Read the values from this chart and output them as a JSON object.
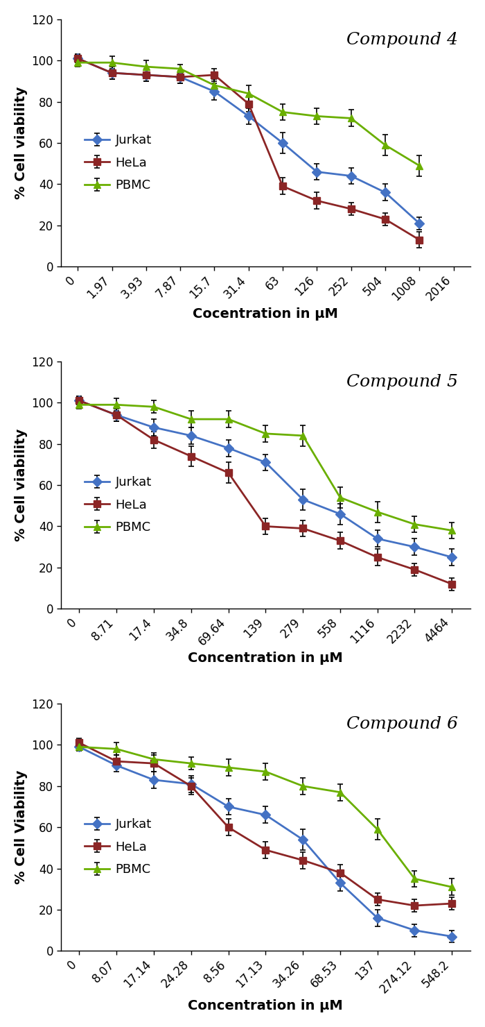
{
  "compound4": {
    "title": "Compound 4",
    "xlabel": "Cocentration in μM",
    "ylabel": "% Cell viability",
    "xtick_labels": [
      "0",
      "1.97",
      "3.93",
      "7.87",
      "15.7",
      "31.4",
      "63",
      "126",
      "252",
      "504",
      "1008",
      "2016"
    ],
    "jurkat_y": [
      101,
      94,
      93,
      92,
      85,
      73,
      60,
      46,
      44,
      36,
      21,
      null
    ],
    "jurkat_e": [
      2,
      3,
      3,
      3,
      4,
      4,
      5,
      4,
      4,
      4,
      3,
      null
    ],
    "hela_y": [
      101,
      94,
      93,
      92,
      93,
      79,
      39,
      32,
      28,
      23,
      13,
      null
    ],
    "hela_e": [
      2,
      3,
      3,
      3,
      3,
      4,
      4,
      4,
      3,
      3,
      4,
      null
    ],
    "pbmc_y": [
      99,
      99,
      97,
      96,
      88,
      84,
      75,
      73,
      72,
      59,
      49,
      null
    ],
    "pbmc_e": [
      2,
      3,
      3,
      2,
      3,
      4,
      4,
      4,
      4,
      5,
      5,
      null
    ]
  },
  "compound5": {
    "title": "Compound 5",
    "xlabel": "Concentration in μM",
    "ylabel": "% Cell viability",
    "xtick_labels": [
      "0",
      "8.71",
      "17.4",
      "34.8",
      "69.64",
      "139",
      "279",
      "558",
      "1116",
      "2232",
      "4464"
    ],
    "jurkat_y": [
      101,
      94,
      88,
      84,
      78,
      71,
      53,
      46,
      34,
      30,
      25
    ],
    "jurkat_e": [
      2,
      3,
      4,
      4,
      4,
      4,
      5,
      5,
      4,
      4,
      4
    ],
    "hela_y": [
      101,
      94,
      82,
      74,
      66,
      40,
      39,
      33,
      25,
      19,
      12
    ],
    "hela_e": [
      2,
      3,
      4,
      5,
      5,
      4,
      4,
      4,
      4,
      3,
      3
    ],
    "pbmc_y": [
      99,
      99,
      98,
      92,
      92,
      85,
      84,
      54,
      47,
      41,
      38
    ],
    "pbmc_e": [
      2,
      3,
      3,
      4,
      4,
      4,
      5,
      5,
      5,
      4,
      4
    ]
  },
  "compound6": {
    "title": "Compound 6",
    "xlabel": "Concentration in μM",
    "ylabel": "% Cell Viability",
    "xtick_labels": [
      "0",
      "8.07",
      "17.14",
      "24.28",
      "8.56",
      "17.13",
      "34.26",
      "68.53",
      "137",
      "274.12",
      "548.2"
    ],
    "jurkat_y": [
      99,
      90,
      83,
      81,
      70,
      66,
      54,
      33,
      16,
      10,
      7
    ],
    "jurkat_e": [
      2,
      3,
      4,
      4,
      4,
      4,
      5,
      4,
      4,
      3,
      3
    ],
    "hela_y": [
      101,
      92,
      91,
      80,
      60,
      49,
      44,
      38,
      25,
      22,
      23
    ],
    "hela_e": [
      2,
      3,
      4,
      4,
      4,
      4,
      4,
      4,
      3,
      3,
      3
    ],
    "pbmc_y": [
      99,
      98,
      93,
      91,
      89,
      87,
      80,
      77,
      59,
      35,
      31
    ],
    "pbmc_e": [
      2,
      3,
      3,
      3,
      4,
      4,
      4,
      4,
      5,
      4,
      4
    ]
  },
  "jurkat_color": "#4472C4",
  "hela_color": "#8B2525",
  "pbmc_color": "#6AAF00",
  "line_width": 2.0,
  "marker_size": 7,
  "ylim": [
    0,
    120
  ],
  "yticks": [
    0,
    20,
    40,
    60,
    80,
    100,
    120
  ],
  "legend_labels": [
    "Jurkat",
    "HeLa",
    "PBMC"
  ],
  "title_fontsize": 18,
  "label_fontsize": 14,
  "tick_fontsize": 12,
  "legend_fontsize": 13
}
